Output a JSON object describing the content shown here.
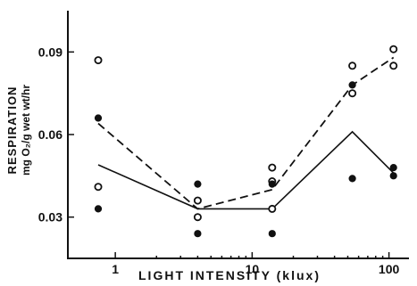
{
  "chart_data": {
    "type": "scatter",
    "xscale": "log",
    "xlim": [
      0.45,
      140
    ],
    "ylim": [
      0.015,
      0.105
    ],
    "grid": false,
    "xlabel": "LIGHT INTENSITY (klux)",
    "ylabel_line1": "RESPIRATION",
    "ylabel_line2": "mg O₂/g wet wt/hr",
    "xticks": [
      {
        "value": 1,
        "label": "1"
      },
      {
        "value": 10,
        "label": "10"
      },
      {
        "value": 100,
        "label": "100"
      }
    ],
    "yticks": [
      {
        "value": 0.03,
        "label": "0.03"
      },
      {
        "value": 0.06,
        "label": "0.06"
      },
      {
        "value": 0.09,
        "label": "0.09"
      }
    ],
    "series": [
      {
        "marker": "open-circle",
        "line": "dashed",
        "points": [
          {
            "x": 0.75,
            "y": 0.087
          },
          {
            "x": 0.75,
            "y": 0.041
          },
          {
            "x": 4.0,
            "y": 0.036
          },
          {
            "x": 4.0,
            "y": 0.03
          },
          {
            "x": 14,
            "y": 0.048
          },
          {
            "x": 14,
            "y": 0.043
          },
          {
            "x": 14,
            "y": 0.033
          },
          {
            "x": 54,
            "y": 0.085
          },
          {
            "x": 54,
            "y": 0.075
          },
          {
            "x": 108,
            "y": 0.091
          },
          {
            "x": 108,
            "y": 0.085
          }
        ],
        "line_points": [
          {
            "x": 0.75,
            "y": 0.064
          },
          {
            "x": 4.0,
            "y": 0.033
          },
          {
            "x": 14,
            "y": 0.04
          },
          {
            "x": 54,
            "y": 0.078
          },
          {
            "x": 108,
            "y": 0.088
          }
        ]
      },
      {
        "marker": "filled-circle",
        "line": "solid",
        "points": [
          {
            "x": 0.75,
            "y": 0.066
          },
          {
            "x": 0.75,
            "y": 0.033
          },
          {
            "x": 4.0,
            "y": 0.042
          },
          {
            "x": 4.0,
            "y": 0.024
          },
          {
            "x": 14,
            "y": 0.042
          },
          {
            "x": 14,
            "y": 0.024
          },
          {
            "x": 54,
            "y": 0.078
          },
          {
            "x": 54,
            "y": 0.044
          },
          {
            "x": 108,
            "y": 0.048
          },
          {
            "x": 108,
            "y": 0.045
          }
        ],
        "line_points": [
          {
            "x": 0.75,
            "y": 0.049
          },
          {
            "x": 4.0,
            "y": 0.033
          },
          {
            "x": 14,
            "y": 0.033
          },
          {
            "x": 54,
            "y": 0.061
          },
          {
            "x": 108,
            "y": 0.046
          }
        ]
      }
    ]
  }
}
